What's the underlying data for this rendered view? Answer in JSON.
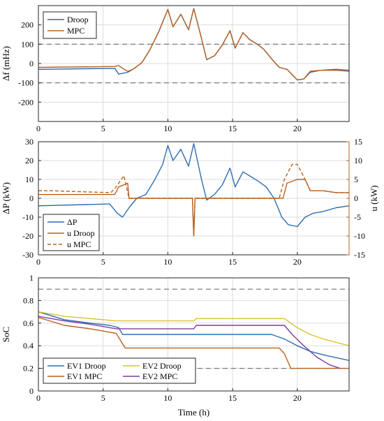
{
  "chart_data": [
    {
      "type": "line",
      "ylabel": "Δf (mHz)",
      "xlim": [
        0,
        24
      ],
      "ylim": [
        -300,
        300
      ],
      "y_ticks": [
        -200,
        -100,
        0,
        100,
        200
      ],
      "x_ticks": [
        0,
        5,
        10,
        15,
        20
      ],
      "grid": true,
      "legend": "top-left",
      "reference_lines": [
        100,
        -100
      ],
      "series": [
        {
          "name": "Droop",
          "color": "#2E6DB4",
          "x": [
            0,
            5.9,
            6.2,
            6.9,
            7.3,
            8.0,
            8.6,
            9.3,
            10.0,
            10.4,
            11.0,
            11.6,
            12.0,
            12.6,
            13.0,
            13.6,
            14.2,
            14.8,
            15.2,
            15.8,
            16.3,
            16.9,
            17.4,
            18.0,
            18.6,
            19.2,
            20.0,
            20.5,
            21.0,
            21.8,
            23.0,
            24.0
          ],
          "y": [
            -30,
            -25,
            -55,
            -45,
            -30,
            5,
            70,
            165,
            280,
            190,
            255,
            175,
            285,
            130,
            20,
            40,
            95,
            170,
            80,
            160,
            125,
            100,
            75,
            25,
            -20,
            -30,
            -85,
            -80,
            -45,
            -35,
            -30,
            -35
          ]
        },
        {
          "name": "MPC",
          "color": "#B8621F",
          "x": [
            0,
            5.9,
            6.2,
            6.5,
            6.9,
            7.3,
            8.0,
            8.6,
            9.3,
            10.0,
            10.4,
            11.0,
            11.6,
            12.0,
            12.6,
            13.0,
            13.6,
            14.2,
            14.8,
            15.2,
            15.8,
            16.3,
            16.9,
            17.4,
            18.0,
            18.6,
            19.2,
            20.0,
            20.5,
            21.0,
            21.8,
            23.0,
            24.0
          ],
          "y": [
            -20,
            -15,
            -10,
            -25,
            -40,
            -30,
            5,
            70,
            165,
            280,
            190,
            255,
            175,
            285,
            130,
            20,
            40,
            95,
            170,
            80,
            160,
            125,
            100,
            75,
            25,
            -20,
            -30,
            -85,
            -80,
            -40,
            -35,
            -35,
            -40
          ]
        }
      ]
    },
    {
      "type": "line",
      "ylabel": "ΔP (kW)",
      "y2label": "u (kW)",
      "xlim": [
        0,
        24
      ],
      "ylim": [
        -30,
        30
      ],
      "y2lim": [
        -15,
        15
      ],
      "y_ticks": [
        -30,
        -20,
        -10,
        0,
        10,
        20,
        30
      ],
      "y2_ticks": [
        -15,
        -10,
        -5,
        0,
        5,
        10,
        15
      ],
      "x_ticks": [
        0,
        5,
        10,
        15,
        20
      ],
      "grid": true,
      "legend": "bottom-left",
      "series": [
        {
          "name": "ΔP",
          "axis": "left",
          "color": "#2E6DB4",
          "dash": false,
          "x": [
            0,
            5.5,
            6.1,
            6.5,
            7.0,
            7.6,
            8.3,
            9.0,
            9.6,
            10.0,
            10.4,
            11.0,
            11.6,
            12.0,
            12.6,
            13.0,
            13.6,
            14.2,
            14.8,
            15.2,
            15.8,
            16.3,
            17.0,
            17.6,
            18.2,
            18.8,
            19.3,
            20.0,
            20.6,
            21.2,
            22.0,
            23.0,
            24.0
          ],
          "y": [
            -4,
            -3,
            -8,
            -10,
            -5,
            0,
            2,
            10,
            18,
            28,
            20,
            26,
            17,
            29,
            10,
            -1,
            2,
            7,
            16,
            6,
            14,
            12,
            9,
            6,
            0,
            -10,
            -14,
            -15,
            -10,
            -8,
            -7,
            -5,
            -4
          ]
        },
        {
          "name": "u Droop",
          "axis": "right",
          "color": "#B8621F",
          "dash": false,
          "x": [
            0,
            5.9,
            6.2,
            6.9,
            7.0,
            11.9,
            12.0,
            12.1,
            12.2,
            18.6,
            18.9,
            19.2,
            20.0,
            20.6,
            21.0,
            22.0,
            23.0,
            24.0
          ],
          "y": [
            1,
            1,
            3,
            4,
            0,
            0,
            -10,
            0,
            0,
            0,
            0,
            4,
            5,
            5,
            2,
            2,
            1.5,
            1.5
          ]
        },
        {
          "name": "u MPC",
          "axis": "right",
          "color": "#B8621F",
          "dash": true,
          "x": [
            0,
            1.0,
            5.6,
            6.0,
            6.6,
            7.0,
            11.9,
            12.0,
            12.1,
            12.2,
            18.6,
            19.0,
            19.6,
            20.0,
            20.6,
            21.0,
            22.0,
            23.0,
            24.0
          ],
          "y": [
            2,
            2,
            1.5,
            3,
            6,
            0,
            0,
            -10,
            0,
            0,
            0,
            5,
            9,
            9,
            5,
            2,
            2,
            1.5,
            1.5
          ]
        }
      ]
    },
    {
      "type": "line",
      "xlabel": "Time (h)",
      "ylabel": "SoC",
      "xlim": [
        0,
        24
      ],
      "ylim": [
        0,
        1
      ],
      "y_ticks": [
        0,
        0.2,
        0.4,
        0.6,
        0.8,
        1
      ],
      "x_ticks": [
        0,
        5,
        10,
        15,
        20
      ],
      "grid": true,
      "legend": "bottom-left",
      "reference_lines": [
        0.9,
        0.2
      ],
      "series": [
        {
          "name": "EV1 Droop",
          "color": "#2E6DB4",
          "x": [
            0,
            2,
            4,
            5.5,
            6.2,
            6.5,
            15.0,
            18.0,
            19.0,
            20.0,
            21.0,
            22.0,
            24.0
          ],
          "y": [
            0.7,
            0.63,
            0.6,
            0.58,
            0.56,
            0.5,
            0.5,
            0.5,
            0.46,
            0.4,
            0.35,
            0.32,
            0.27
          ]
        },
        {
          "name": "EV1 MPC",
          "color": "#B8621F",
          "x": [
            0,
            2,
            4,
            6.0,
            6.7,
            15.0,
            18.6,
            19.0,
            19.5,
            24.0
          ],
          "y": [
            0.65,
            0.58,
            0.55,
            0.51,
            0.38,
            0.38,
            0.38,
            0.33,
            0.2,
            0.2
          ]
        },
        {
          "name": "EV2 Droop",
          "color": "#D8C232",
          "x": [
            0,
            2,
            4,
            6.0,
            12.0,
            12.2,
            19.0,
            20.0,
            21.0,
            22.0,
            24.0
          ],
          "y": [
            0.7,
            0.66,
            0.64,
            0.62,
            0.62,
            0.64,
            0.64,
            0.56,
            0.5,
            0.46,
            0.4
          ]
        },
        {
          "name": "EV2 MPC",
          "color": "#7B3EA0",
          "x": [
            0,
            2,
            4,
            6.0,
            12.0,
            12.2,
            19.0,
            19.6,
            20.5,
            21.5,
            22.5,
            23.3
          ],
          "y": [
            0.66,
            0.62,
            0.59,
            0.55,
            0.55,
            0.58,
            0.58,
            0.5,
            0.4,
            0.3,
            0.23,
            0.2
          ]
        }
      ]
    }
  ]
}
